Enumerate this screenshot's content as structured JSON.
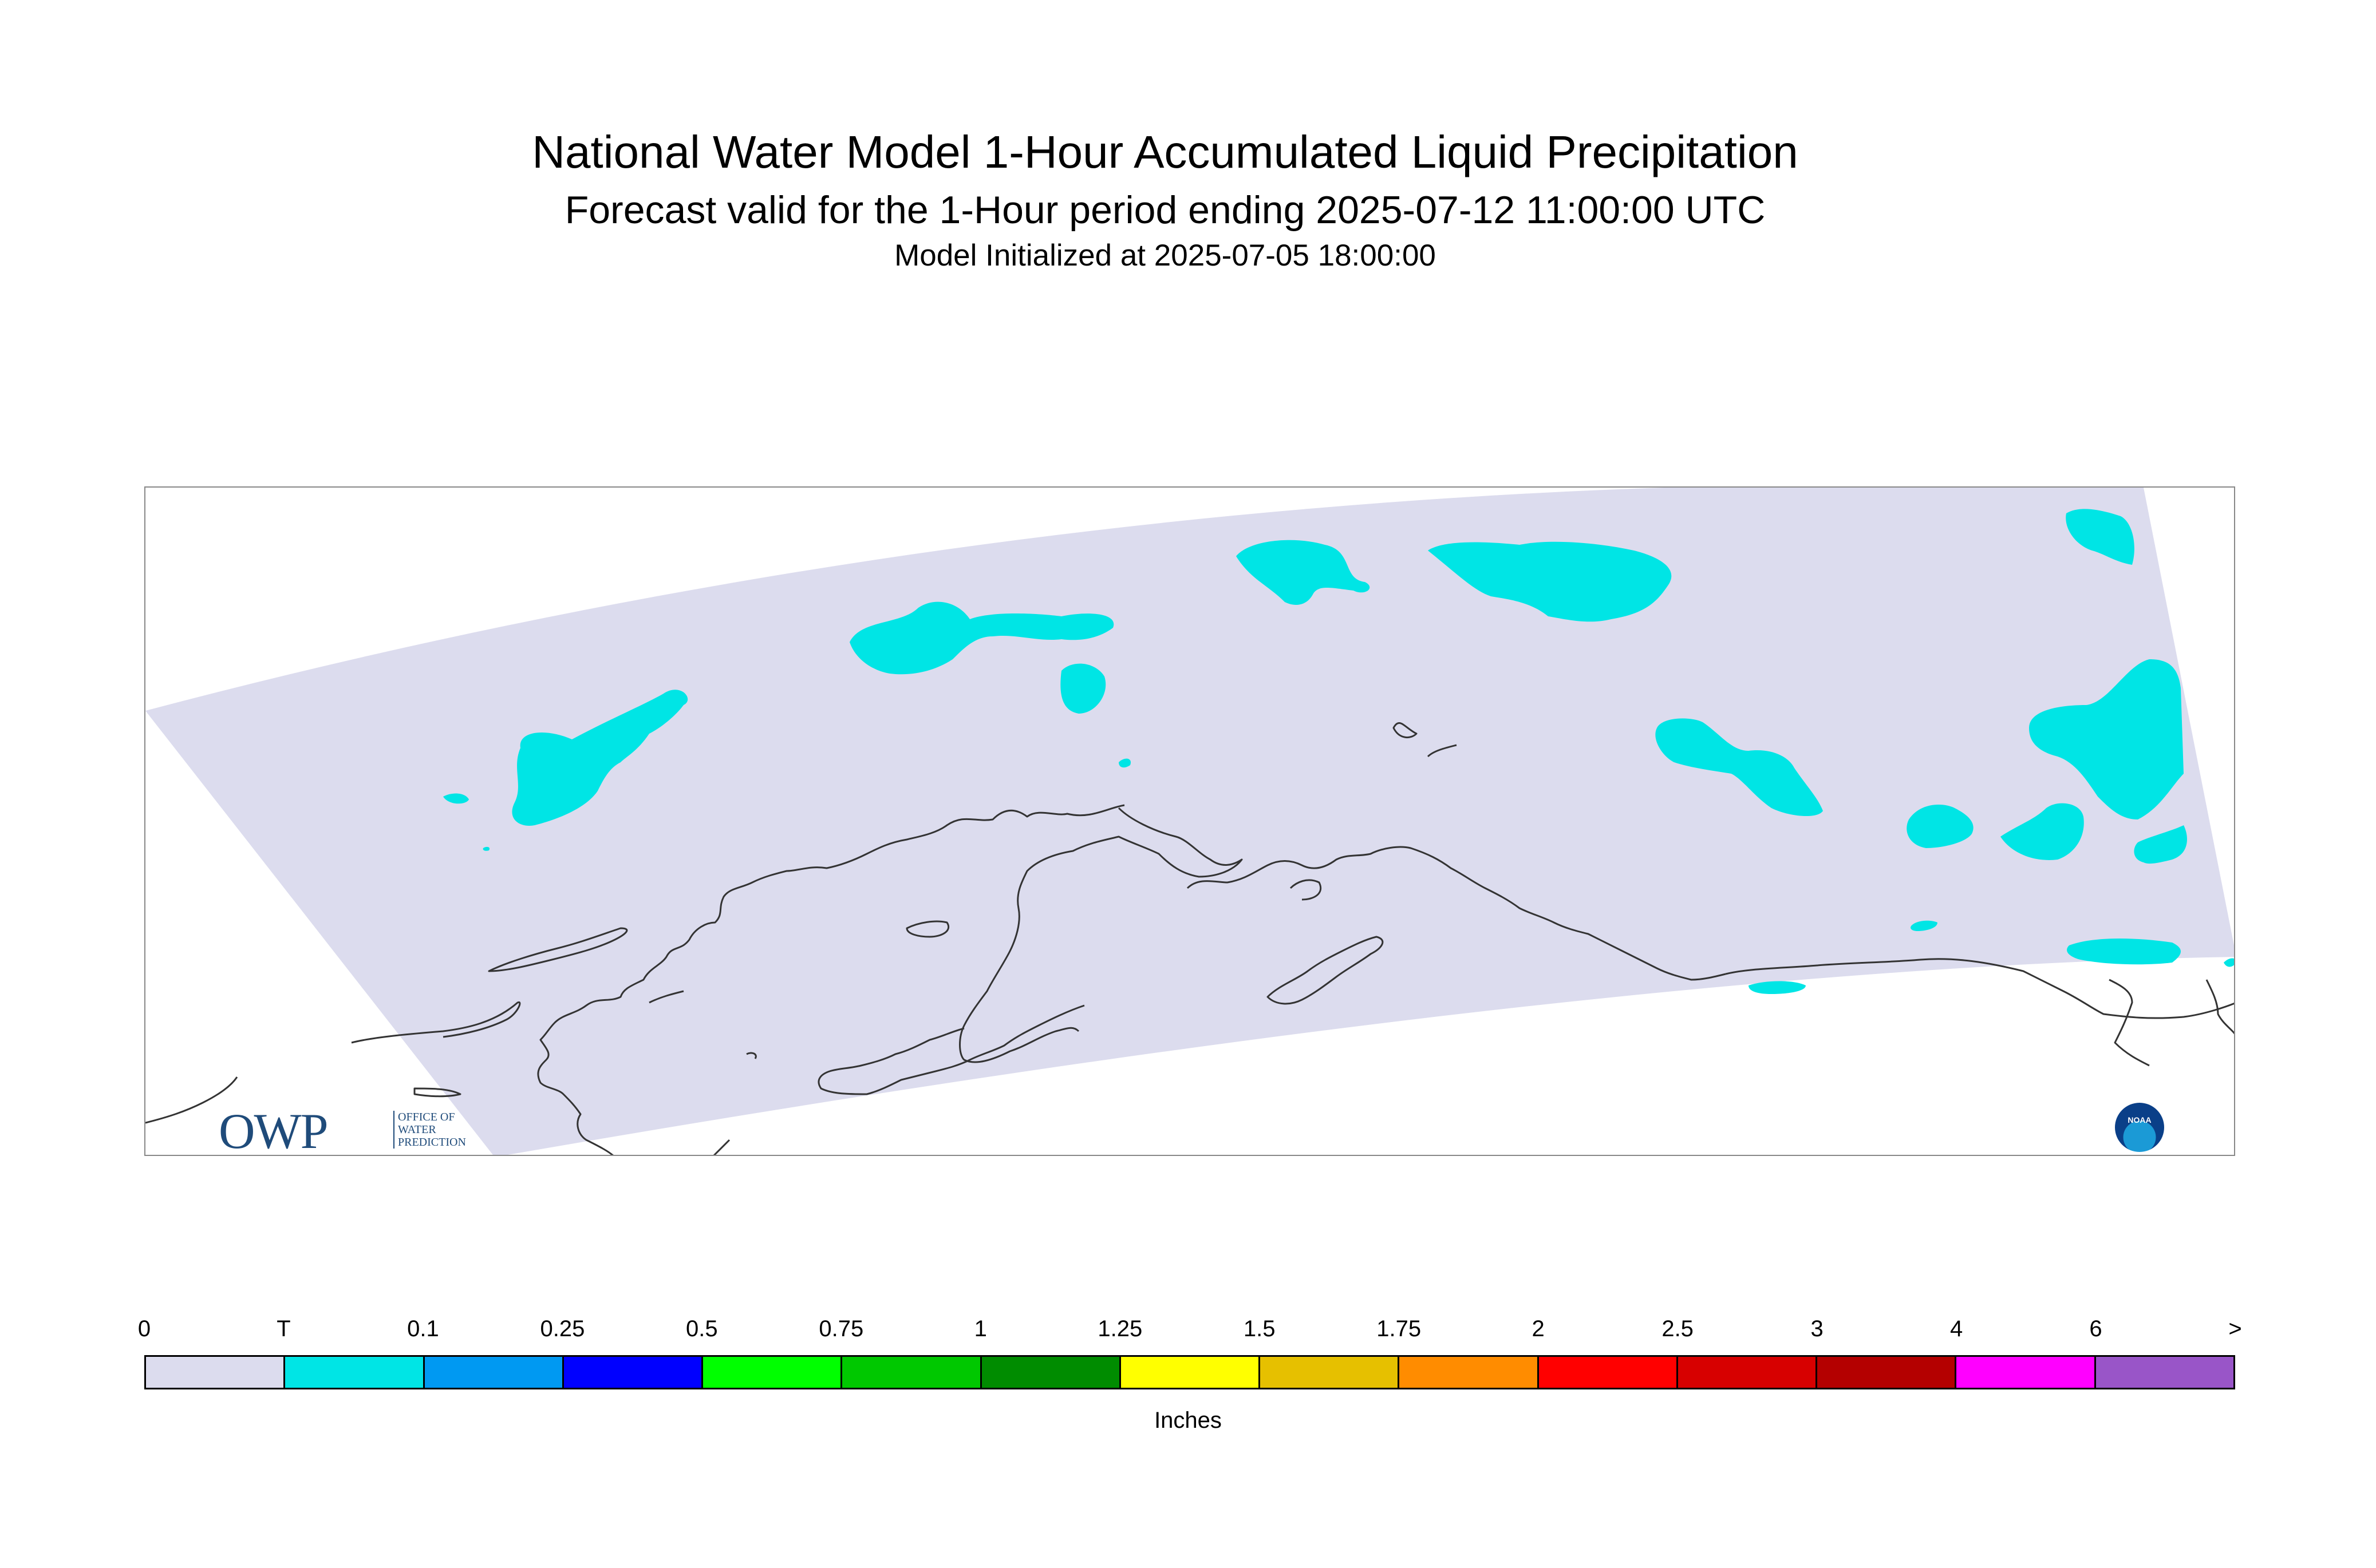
{
  "titles": {
    "main": "National Water Model 1-Hour Accumulated Liquid Precipitation",
    "forecast": "Forecast valid for the 1-Hour period ending 2025-07-12 11:00:00 UTC",
    "init": "Model Initialized at 2025-07-05 18:00:00"
  },
  "logos": {
    "owp_mark": "OWP",
    "owp_text": "OFFICE OF\nWATER\nPREDICTION",
    "noaa": "NOAA"
  },
  "legend": {
    "units": "Inches",
    "ticks": [
      "0",
      "T",
      "0.1",
      "0.25",
      "0.5",
      "0.75",
      "1",
      "1.25",
      "1.5",
      "1.75",
      "2",
      "2.5",
      "3",
      "4",
      "6",
      ">"
    ],
    "colors": [
      "#dcdcee",
      "#00e5e5",
      "#0099f2",
      "#0000ff",
      "#00ff00",
      "#00c800",
      "#008c00",
      "#ffff00",
      "#e6c000",
      "#ff8c00",
      "#ff0000",
      "#d70000",
      "#b40000",
      "#ff00ff",
      "#9955c8"
    ]
  },
  "map": {
    "domain_color": "#dcdcee",
    "precip_color": "#00e5e5",
    "coast_color": "#333333"
  }
}
